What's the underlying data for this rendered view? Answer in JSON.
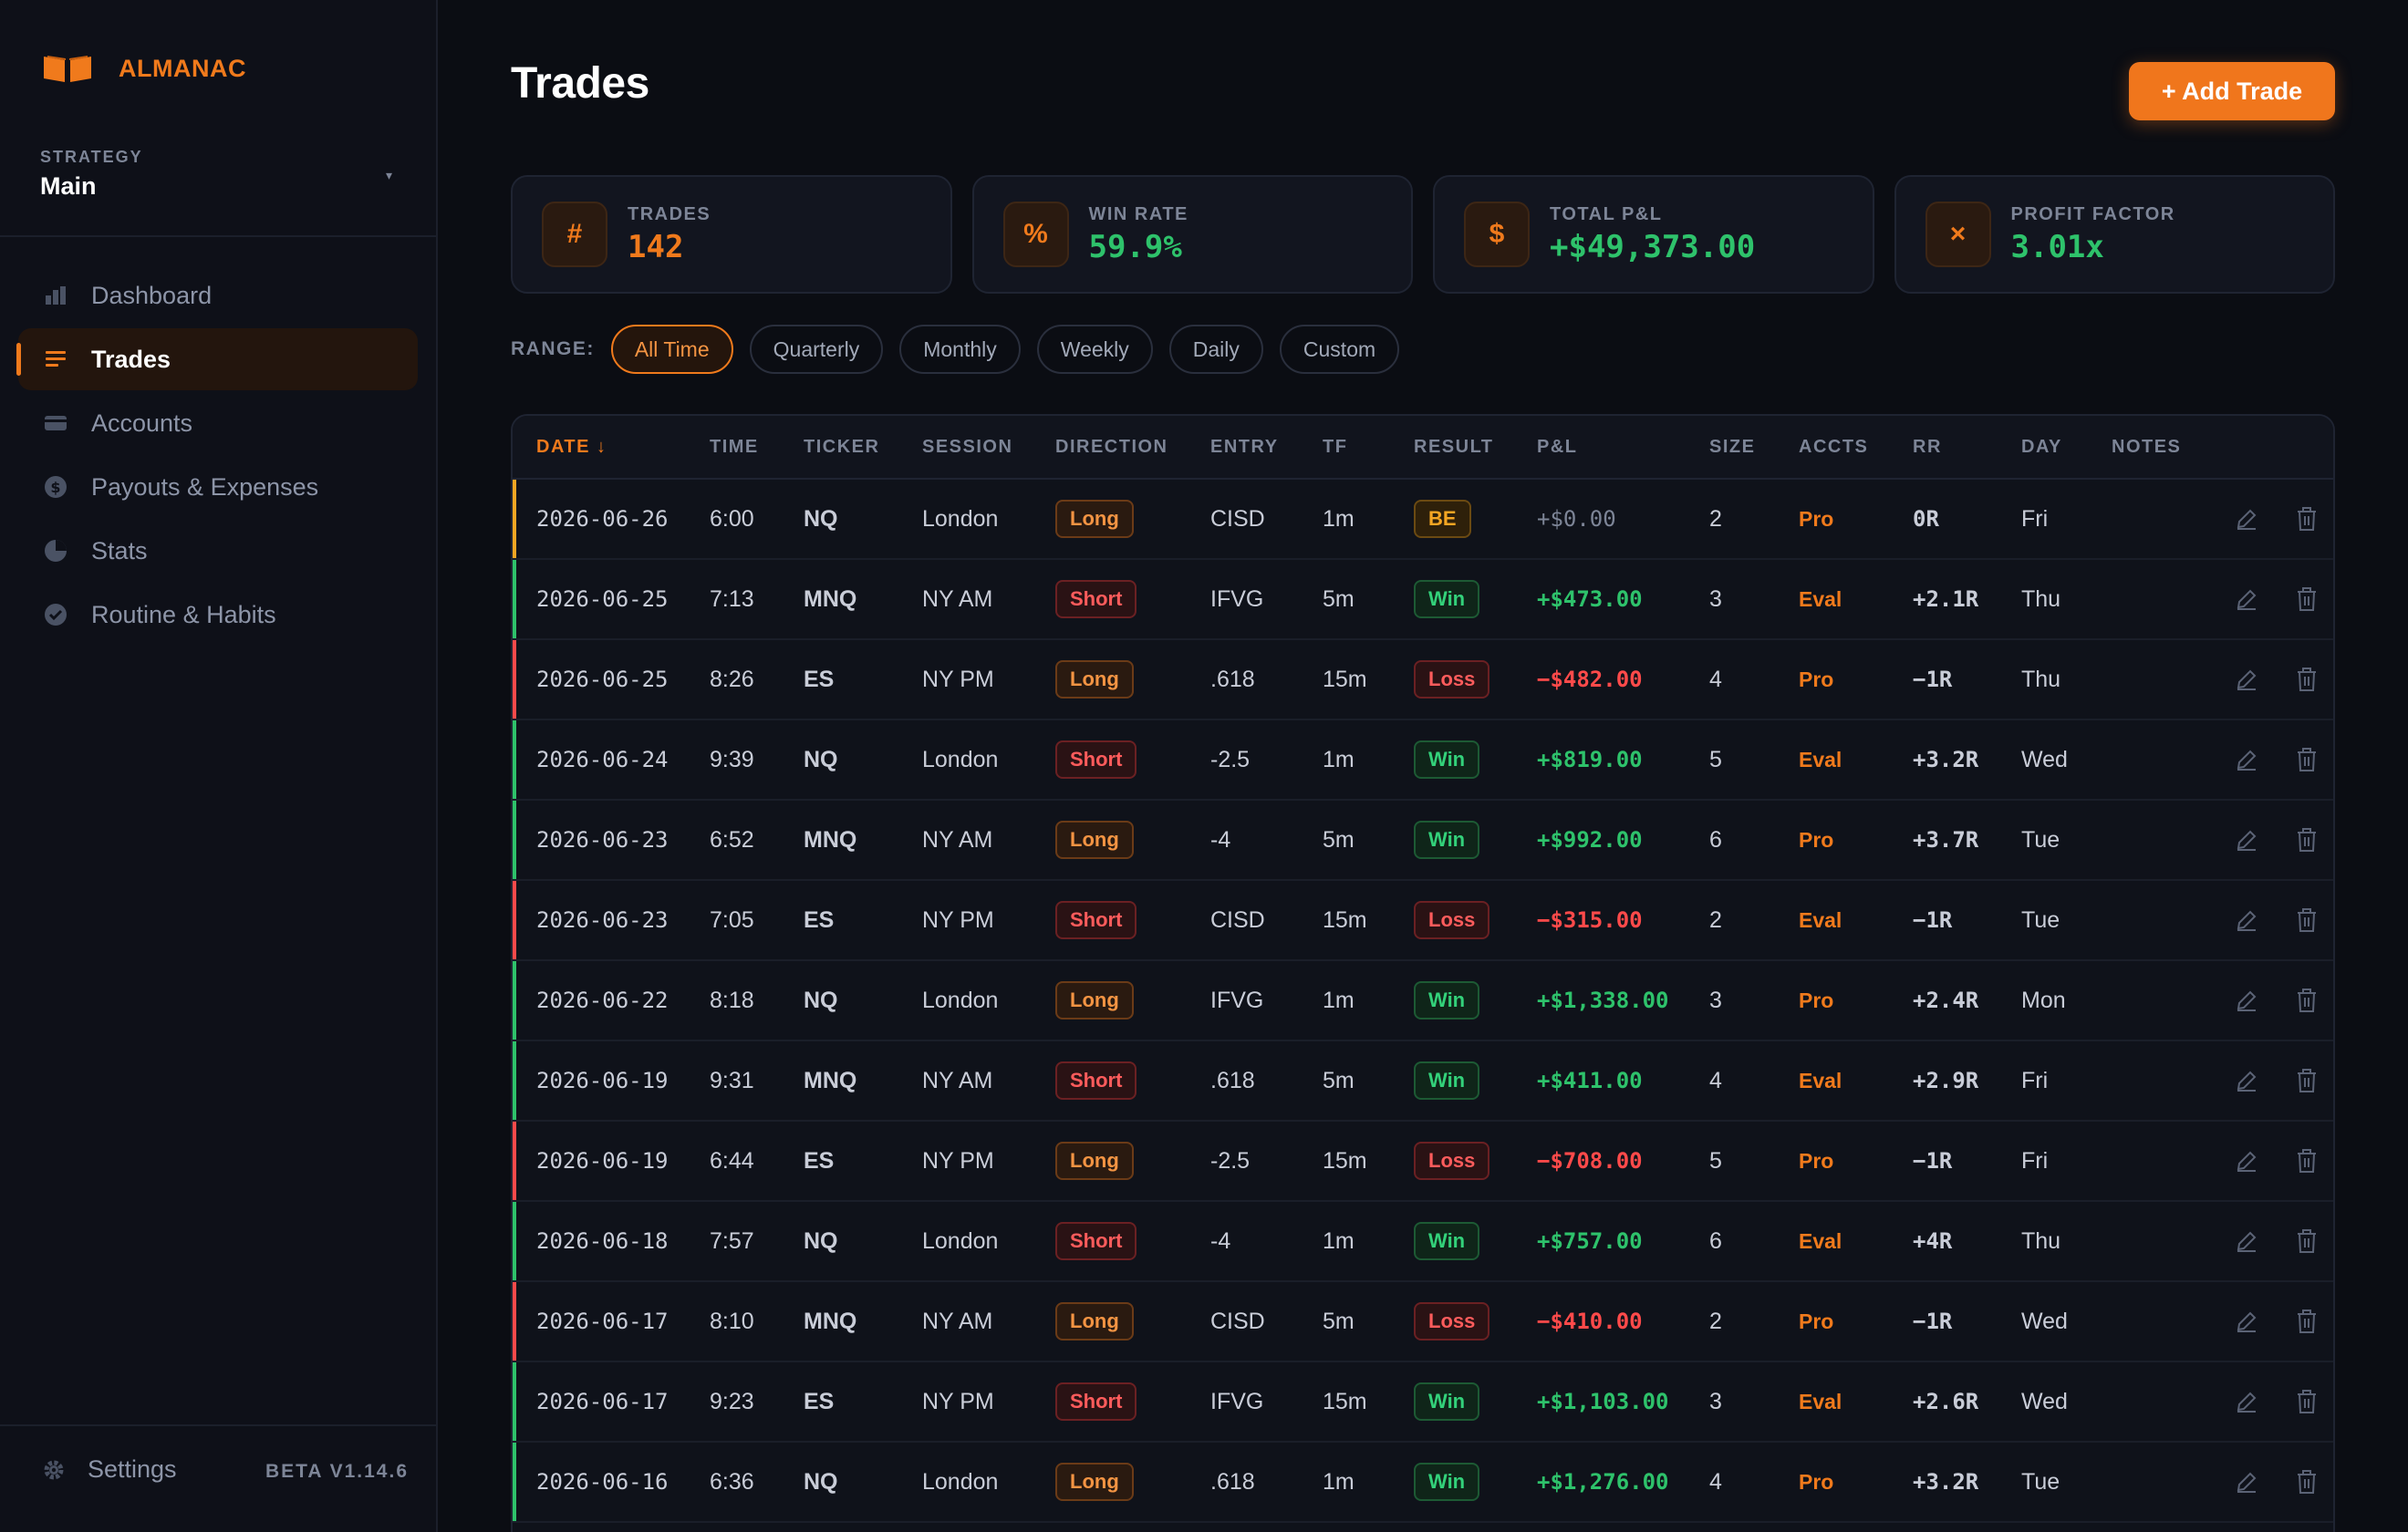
{
  "app": {
    "name": "ALMANAC",
    "version": "BETA V1.14.6"
  },
  "strategy": {
    "label": "STRATEGY",
    "value": "Main"
  },
  "nav": [
    {
      "key": "dashboard",
      "label": "Dashboard",
      "icon": "bar-chart-icon"
    },
    {
      "key": "trades",
      "label": "Trades",
      "icon": "list-icon",
      "active": true
    },
    {
      "key": "accounts",
      "label": "Accounts",
      "icon": "card-icon"
    },
    {
      "key": "payouts",
      "label": "Payouts & Expenses",
      "icon": "dollar-circle-icon"
    },
    {
      "key": "stats",
      "label": "Stats",
      "icon": "pie-chart-icon"
    },
    {
      "key": "routine",
      "label": "Routine & Habits",
      "icon": "check-circle-icon"
    }
  ],
  "settings": {
    "label": "Settings"
  },
  "page": {
    "title": "Trades",
    "add_button": "+ Add Trade"
  },
  "stats": [
    {
      "icon": "#",
      "label": "TRADES",
      "value": "142",
      "tone": "orange"
    },
    {
      "icon": "%",
      "label": "WIN RATE",
      "value": "59.9%",
      "tone": "green"
    },
    {
      "icon": "$",
      "label": "TOTAL P&L",
      "value": "+$49,373.00",
      "tone": "green"
    },
    {
      "icon": "×",
      "label": "PROFIT FACTOR",
      "value": "3.01x",
      "tone": "green"
    }
  ],
  "range": {
    "label": "RANGE:",
    "options": [
      "All Time",
      "Quarterly",
      "Monthly",
      "Weekly",
      "Daily",
      "Custom"
    ],
    "selected": "All Time"
  },
  "table": {
    "columns": [
      "DATE ↓",
      "TIME",
      "TICKER",
      "SESSION",
      "DIRECTION",
      "ENTRY",
      "TF",
      "RESULT",
      "P&L",
      "SIZE",
      "ACCTS",
      "RR",
      "DAY",
      "NOTES"
    ],
    "rows": [
      {
        "date": "2026-06-26",
        "time": "6:00",
        "ticker": "NQ",
        "session": "London",
        "direction": "Long",
        "entry": "CISD",
        "tf": "1m",
        "result": "BE",
        "pnl": "+$0.00",
        "size": "2",
        "accts": "Pro",
        "rr": "0R",
        "day": "Fri",
        "notes": ""
      },
      {
        "date": "2026-06-25",
        "time": "7:13",
        "ticker": "MNQ",
        "session": "NY AM",
        "direction": "Short",
        "entry": "IFVG",
        "tf": "5m",
        "result": "Win",
        "pnl": "+$473.00",
        "size": "3",
        "accts": "Eval",
        "rr": "+2.1R",
        "day": "Thu",
        "notes": ""
      },
      {
        "date": "2026-06-25",
        "time": "8:26",
        "ticker": "ES",
        "session": "NY PM",
        "direction": "Long",
        "entry": ".618",
        "tf": "15m",
        "result": "Loss",
        "pnl": "−$482.00",
        "size": "4",
        "accts": "Pro",
        "rr": "−1R",
        "day": "Thu",
        "notes": ""
      },
      {
        "date": "2026-06-24",
        "time": "9:39",
        "ticker": "NQ",
        "session": "London",
        "direction": "Short",
        "entry": "-2.5",
        "tf": "1m",
        "result": "Win",
        "pnl": "+$819.00",
        "size": "5",
        "accts": "Eval",
        "rr": "+3.2R",
        "day": "Wed",
        "notes": ""
      },
      {
        "date": "2026-06-23",
        "time": "6:52",
        "ticker": "MNQ",
        "session": "NY AM",
        "direction": "Long",
        "entry": "-4",
        "tf": "5m",
        "result": "Win",
        "pnl": "+$992.00",
        "size": "6",
        "accts": "Pro",
        "rr": "+3.7R",
        "day": "Tue",
        "notes": ""
      },
      {
        "date": "2026-06-23",
        "time": "7:05",
        "ticker": "ES",
        "session": "NY PM",
        "direction": "Short",
        "entry": "CISD",
        "tf": "15m",
        "result": "Loss",
        "pnl": "−$315.00",
        "size": "2",
        "accts": "Eval",
        "rr": "−1R",
        "day": "Tue",
        "notes": ""
      },
      {
        "date": "2026-06-22",
        "time": "8:18",
        "ticker": "NQ",
        "session": "London",
        "direction": "Long",
        "entry": "IFVG",
        "tf": "1m",
        "result": "Win",
        "pnl": "+$1,338.00",
        "size": "3",
        "accts": "Pro",
        "rr": "+2.4R",
        "day": "Mon",
        "notes": ""
      },
      {
        "date": "2026-06-19",
        "time": "9:31",
        "ticker": "MNQ",
        "session": "NY AM",
        "direction": "Short",
        "entry": ".618",
        "tf": "5m",
        "result": "Win",
        "pnl": "+$411.00",
        "size": "4",
        "accts": "Eval",
        "rr": "+2.9R",
        "day": "Fri",
        "notes": ""
      },
      {
        "date": "2026-06-19",
        "time": "6:44",
        "ticker": "ES",
        "session": "NY PM",
        "direction": "Long",
        "entry": "-2.5",
        "tf": "15m",
        "result": "Loss",
        "pnl": "−$708.00",
        "size": "5",
        "accts": "Pro",
        "rr": "−1R",
        "day": "Fri",
        "notes": ""
      },
      {
        "date": "2026-06-18",
        "time": "7:57",
        "ticker": "NQ",
        "session": "London",
        "direction": "Short",
        "entry": "-4",
        "tf": "1m",
        "result": "Win",
        "pnl": "+$757.00",
        "size": "6",
        "accts": "Eval",
        "rr": "+4R",
        "day": "Thu",
        "notes": ""
      },
      {
        "date": "2026-06-17",
        "time": "8:10",
        "ticker": "MNQ",
        "session": "NY AM",
        "direction": "Long",
        "entry": "CISD",
        "tf": "5m",
        "result": "Loss",
        "pnl": "−$410.00",
        "size": "2",
        "accts": "Pro",
        "rr": "−1R",
        "day": "Wed",
        "notes": ""
      },
      {
        "date": "2026-06-17",
        "time": "9:23",
        "ticker": "ES",
        "session": "NY PM",
        "direction": "Short",
        "entry": "IFVG",
        "tf": "15m",
        "result": "Win",
        "pnl": "+$1,103.00",
        "size": "3",
        "accts": "Eval",
        "rr": "+2.6R",
        "day": "Wed",
        "notes": ""
      },
      {
        "date": "2026-06-16",
        "time": "6:36",
        "ticker": "NQ",
        "session": "London",
        "direction": "Long",
        "entry": ".618",
        "tf": "1m",
        "result": "Win",
        "pnl": "+$1,276.00",
        "size": "4",
        "accts": "Pro",
        "rr": "+3.2R",
        "day": "Tue",
        "notes": ""
      }
    ]
  },
  "colors": {
    "accent": "#f07a1c",
    "win": "#2ec26b",
    "loss": "#ff4a4a",
    "be": "#f5a623"
  }
}
